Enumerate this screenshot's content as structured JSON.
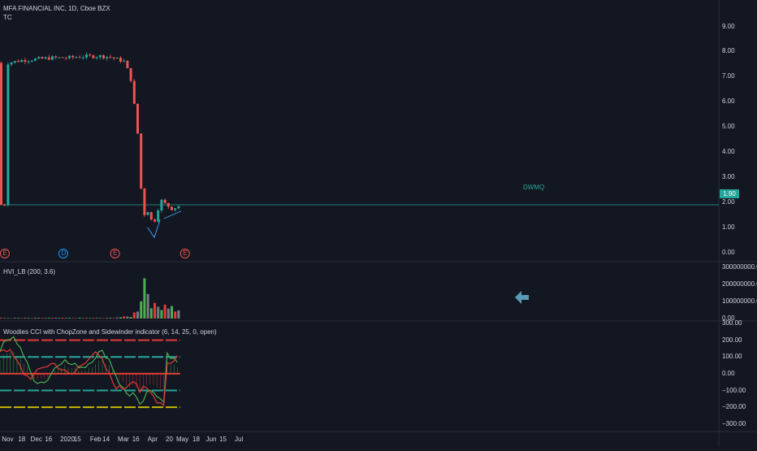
{
  "header": {
    "symbol": "MFA FINANCIAL INC, 1D, Cboe BZX",
    "indicator": "TC"
  },
  "price_axis": {
    "ticks": [
      "9.00",
      "8.00",
      "7.00",
      "6.00",
      "5.00",
      "4.00",
      "3.00",
      "2.00",
      "1.00",
      "0.00"
    ],
    "last_price": "1.90"
  },
  "volume_pane": {
    "title": "HVI_LB (200, 3.6)",
    "ticks": [
      "300000000.00",
      "200000000.00",
      "100000000.00",
      "0.00"
    ]
  },
  "cci_pane": {
    "title": "Woodies CCI with ChopZone and Sidewinder indicator (6, 14, 25, 0, open)",
    "ticks": [
      "300.00",
      "200.00",
      "100.00",
      "0.00",
      "−100.00",
      "−200.00",
      "−300.00"
    ]
  },
  "time_axis": {
    "labels": [
      "Nov",
      "18",
      "Dec",
      "16",
      "2020",
      "15",
      "Feb",
      "14",
      "Mar",
      "16",
      "Apr",
      "20",
      "May",
      "18",
      "Jun",
      "15",
      "Jul"
    ]
  },
  "events": [
    "E",
    "D",
    "E",
    "E"
  ],
  "annotation": "DWMQ",
  "colors": {
    "background": "#131722",
    "up": "#26a69a",
    "down": "#ef5350",
    "last_price_line": "#26a69a",
    "trendline": "#42a5f5",
    "vol_high": "#4caf50",
    "vol_neutral": "#787b86",
    "vol_red": "#e53935",
    "cci_green": "#4caf50",
    "cci_red": "#e53935",
    "arrow": "#5b9bb5"
  },
  "chart_data": [
    {
      "type": "candlestick",
      "title": "MFA FINANCIAL INC, 1D, Cboe BZX",
      "ylim": [
        -0.3,
        9.6
      ],
      "x": [
        "2019-11-01",
        "2019-11-15",
        "2019-12-02",
        "2019-12-16",
        "2020-01-02",
        "2020-01-15",
        "2020-02-03",
        "2020-02-14",
        "2020-03-02",
        "2020-03-09",
        "2020-03-13",
        "2020-03-18",
        "2020-03-20",
        "2020-03-24",
        "2020-04-01",
        "2020-04-09",
        "2020-04-20",
        "2020-04-30"
      ],
      "close": [
        7.55,
        7.65,
        7.7,
        7.75,
        7.75,
        7.8,
        7.82,
        7.8,
        7.6,
        6.8,
        5.5,
        3.9,
        1.0,
        1.8,
        1.1,
        2.1,
        1.7,
        1.9
      ]
    },
    {
      "type": "bar",
      "title": "HVI_LB (200, 3.6)",
      "ylim": [
        0,
        320000000
      ],
      "x": [
        "2019-11",
        "2019-12",
        "2020-01",
        "2020-02",
        "2020-03-09",
        "2020-03-16",
        "2020-03-20",
        "2020-03-24",
        "2020-03-27",
        "2020-04-03",
        "2020-04-13",
        "2020-04-30"
      ],
      "values": [
        3000000,
        3500000,
        3200000,
        3000000,
        12000000,
        60000000,
        160000000,
        275000000,
        120000000,
        60000000,
        90000000,
        30000000
      ]
    },
    {
      "type": "line",
      "title": "Woodies CCI with ChopZone and Sidewinder indicator (6, 14, 25, 0, open)",
      "ylim": [
        -330,
        300
      ],
      "x": [
        "2019-11",
        "2019-12",
        "2020-01",
        "2020-02",
        "2020-03",
        "2020-03-16",
        "2020-04",
        "2020-04-13",
        "2020-04-30"
      ],
      "series": [
        {
          "values": [
            140,
            -60,
            120,
            40,
            -90,
            -230,
            -120,
            180,
            120
          ]
        },
        {
          "values": [
            80,
            -20,
            90,
            10,
            -60,
            -180,
            -100,
            140,
            90
          ]
        }
      ]
    }
  ]
}
